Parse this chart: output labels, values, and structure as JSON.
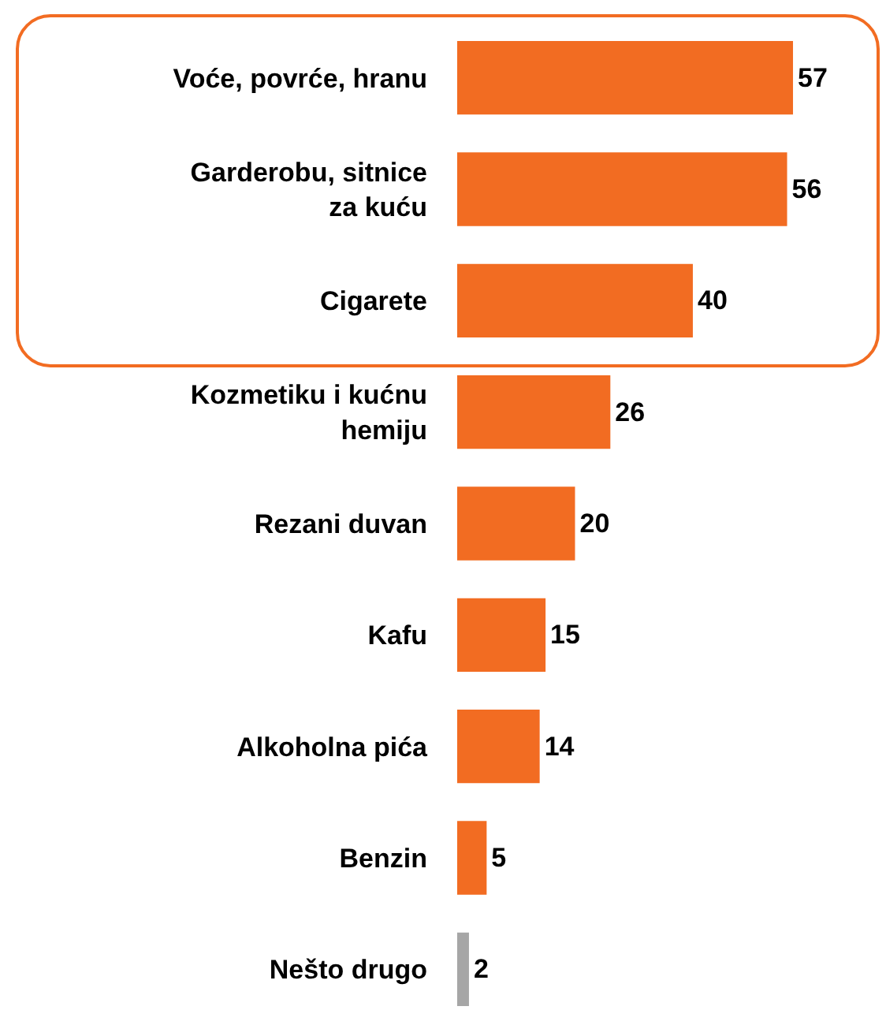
{
  "chart_data": {
    "type": "bar",
    "orientation": "horizontal",
    "data_labels": true,
    "grid": false,
    "legend": false,
    "categories": [
      "Voće, povrće, hranu",
      "Garderobu, sitnice za kuću",
      "Cigarete",
      "Kozmetiku i kućnu hemiju",
      "Rezani duvan",
      "Kafu",
      "Alkoholna pića",
      "Benzin",
      "Nešto drugo"
    ],
    "values": [
      57,
      56,
      40,
      26,
      20,
      15,
      14,
      5,
      2
    ],
    "colors": [
      "#f26c22",
      "#f26c22",
      "#f26c22",
      "#f26c22",
      "#f26c22",
      "#f26c22",
      "#f26c22",
      "#f26c22",
      "#a6a6a6"
    ]
  }
}
